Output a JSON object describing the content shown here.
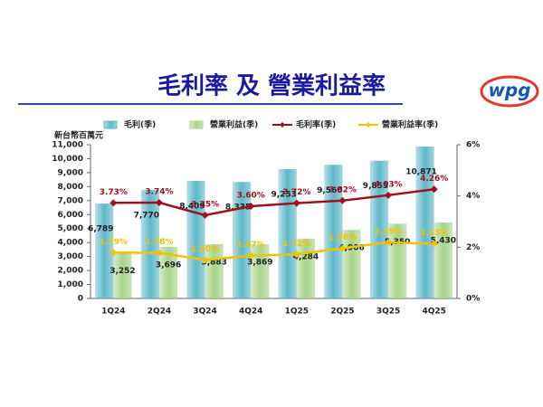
{
  "logo": "wpg",
  "chart_data": {
    "type": "combo",
    "title": "毛利率 及 營業利益率",
    "y_label": "新台幣百萬元",
    "categories": [
      "1Q24",
      "2Q24",
      "3Q24",
      "4Q24",
      "1Q25",
      "2Q25",
      "3Q25",
      "4Q25"
    ],
    "series": [
      {
        "name": "毛利(季)",
        "type": "bar",
        "color": "#5fb8c8",
        "values": [
          6789,
          7770,
          8409,
          8335,
          9253,
          9560,
          9855,
          10871
        ],
        "value_labels": [
          "6,789",
          "7,770",
          "8,409",
          "8,335",
          "9,253",
          "9,560",
          "9,855",
          "10,871"
        ]
      },
      {
        "name": "營業利益(季)",
        "type": "bar",
        "color": "#a8d48a",
        "values": [
          3252,
          3696,
          3883,
          3869,
          4284,
          4906,
          5350,
          5430
        ],
        "value_labels": [
          "3,252",
          "3,696",
          "3,883",
          "3,869",
          "4,284",
          "4,906",
          "5,350",
          "5,430"
        ]
      },
      {
        "name": "毛利率(季)",
        "type": "line",
        "axis": "y2",
        "color": "#a0101e",
        "values": [
          3.73,
          3.74,
          3.25,
          3.6,
          3.72,
          3.82,
          4.03,
          4.26
        ],
        "value_labels": [
          "3.73%",
          "3.74%",
          "3.25%",
          "3.60%",
          "3.72%",
          "3.82%",
          "4.03%",
          "4.26%"
        ]
      },
      {
        "name": "營業利益率(季)",
        "type": "line",
        "axis": "y2",
        "color": "#f2c200",
        "values": [
          1.79,
          1.78,
          1.5,
          1.67,
          1.72,
          1.96,
          2.19,
          2.13
        ],
        "value_labels": [
          "1.79%",
          "1.78%",
          "1.50%",
          "1.67%",
          "1.72%",
          "1.96%",
          "2.19%",
          "2.13%"
        ]
      }
    ],
    "ylim": [
      0,
      11000
    ],
    "yticks": [
      0,
      {
        "value": 1000,
        "label": "1,000"
      },
      {
        "value": 2000,
        "label": "2,000"
      },
      {
        "value": 3000,
        "label": "3,000"
      },
      {
        "value": 4000,
        "label": "4,000"
      },
      {
        "value": 5000,
        "label": "5,000"
      },
      {
        "value": 6000,
        "label": "6,000"
      },
      {
        "value": 7000,
        "label": "7,000"
      },
      {
        "value": 8000,
        "label": "8,000"
      },
      {
        "value": 9000,
        "label": "9,000"
      },
      {
        "value": 10000,
        "label": "10,000"
      },
      {
        "value": 11000,
        "label": "11,000"
      }
    ],
    "y2lim": [
      0,
      6
    ],
    "y2ticks": [
      {
        "value": 0,
        "label": "0%"
      },
      {
        "value": 2,
        "label": "2%"
      },
      {
        "value": 4,
        "label": "4%"
      },
      {
        "value": 6,
        "label": "6%"
      }
    ]
  }
}
